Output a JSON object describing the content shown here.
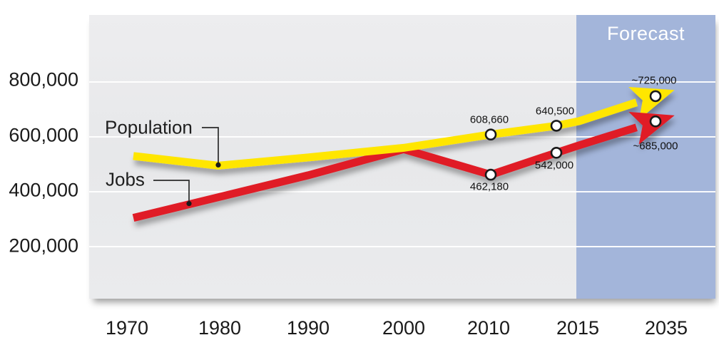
{
  "chart_data": {
    "type": "line",
    "categories": [
      "1970",
      "1980",
      "1990",
      "2000",
      "2010",
      "2015",
      "2035"
    ],
    "series": [
      {
        "name": "Population",
        "color": "#FFE600",
        "values": [
          530000,
          495000,
          525000,
          560000,
          608660,
          640500,
          725000
        ],
        "point_labels": [
          null,
          null,
          null,
          null,
          "608,660",
          "640,500",
          "~725,000"
        ]
      },
      {
        "name": "Jobs",
        "color": "#E01F26",
        "values": [
          305000,
          380000,
          460000,
          555000,
          462180,
          542000,
          685000
        ],
        "point_labels": [
          null,
          null,
          null,
          null,
          "462,180",
          "542,000",
          "~685,000"
        ]
      }
    ],
    "y_tick_labels": [
      "800,000",
      "600,000",
      "400,000",
      "200,000"
    ],
    "y_gridlines": [
      800000,
      600000,
      400000,
      200000
    ],
    "ylim": [
      0,
      1050000
    ],
    "grid": "horizontal-white",
    "legend_position": "on-chart-callouts",
    "forecast_region": {
      "start_category": "2015",
      "end_category": "2035",
      "label": "Forecast",
      "bg_color": "#A3B5DA"
    }
  }
}
